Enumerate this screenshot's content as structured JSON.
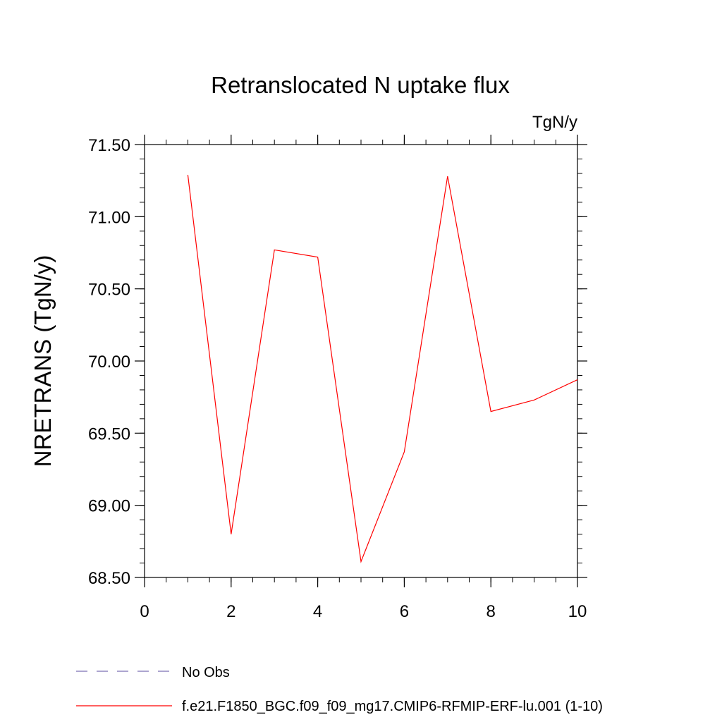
{
  "chart_data": {
    "type": "line",
    "title": "Retranslocated N uptake flux",
    "units_label": "TgN/y",
    "xlabel": "",
    "ylabel": "NRETRANS  (TgN/y)",
    "xlim": [
      0,
      10
    ],
    "ylim": [
      68.5,
      71.5
    ],
    "x_ticks": [
      0,
      2,
      4,
      6,
      8,
      10
    ],
    "x_tick_labels": [
      "0",
      "2",
      "4",
      "6",
      "8",
      "10"
    ],
    "y_ticks": [
      68.5,
      69.0,
      69.5,
      70.0,
      70.5,
      71.0,
      71.5
    ],
    "y_tick_labels": [
      "68.50",
      "69.00",
      "69.50",
      "70.00",
      "70.50",
      "71.00",
      "71.50"
    ],
    "x_minor_step": 0.5,
    "y_minor_step": 0.1,
    "grid": false,
    "legend_position": "bottom-left",
    "series": [
      {
        "name": "f.e21.F1850_BGC.f09_f09_mg17.CMIP6-RFMIP-ERF-lu.001 (1-10)",
        "color": "#ff0000",
        "style": "solid",
        "x": [
          1,
          2,
          3,
          4,
          5,
          6,
          7,
          8,
          9,
          10
        ],
        "values": [
          71.29,
          68.8,
          70.77,
          70.72,
          68.61,
          69.37,
          71.28,
          69.65,
          69.73,
          69.87
        ]
      }
    ],
    "legend": [
      {
        "label": "No Obs",
        "color": "#7b6fb5",
        "style": "dashed"
      },
      {
        "label": "f.e21.F1850_BGC.f09_f09_mg17.CMIP6-RFMIP-ERF-lu.001 (1-10)",
        "color": "#ff0000",
        "style": "solid"
      }
    ]
  }
}
